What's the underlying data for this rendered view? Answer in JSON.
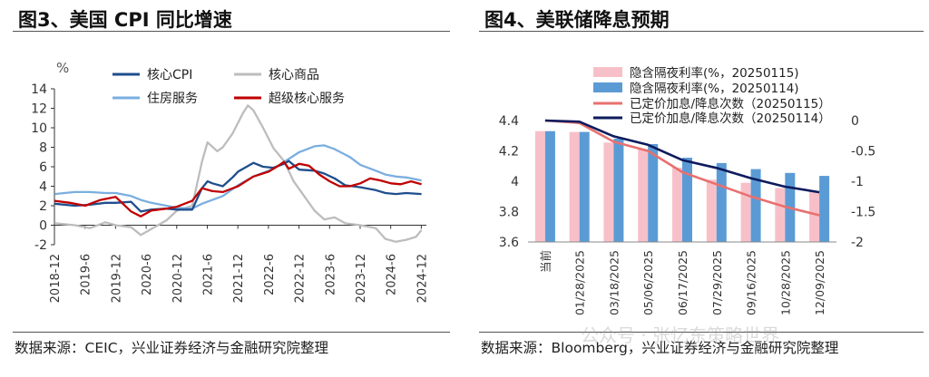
{
  "left": {
    "title": "图3、美国 CPI 同比增速",
    "source_label": "数据来源：",
    "source_text": "CEIC，兴业证券经济与金融研究院整理",
    "chart_data": {
      "type": "line",
      "yunit": "%",
      "ylim": [
        -2,
        14
      ],
      "yticks": [
        -2,
        0,
        2,
        4,
        6,
        8,
        10,
        12,
        14
      ],
      "xlim": [
        2018.917,
        2025.0
      ],
      "xticks": [
        "2018-12",
        "2019-6",
        "2019-12",
        "2020-6",
        "2020-12",
        "2021-6",
        "2021-12",
        "2022-6",
        "2022-12",
        "2023-6",
        "2023-12",
        "2024-6",
        "2024-12"
      ],
      "legend_position": "top",
      "series": [
        {
          "name": "核心CPI",
          "color": "#1f4e8c",
          "points": [
            [
              2018.92,
              2.2
            ],
            [
              2019.25,
              2.0
            ],
            [
              2019.5,
              2.1
            ],
            [
              2019.75,
              2.3
            ],
            [
              2019.92,
              2.3
            ],
            [
              2020.17,
              2.4
            ],
            [
              2020.33,
              1.4
            ],
            [
              2020.5,
              1.6
            ],
            [
              2020.75,
              1.7
            ],
            [
              2020.92,
              1.6
            ],
            [
              2021.17,
              1.6
            ],
            [
              2021.33,
              3.8
            ],
            [
              2021.42,
              4.5
            ],
            [
              2021.5,
              4.3
            ],
            [
              2021.67,
              4.0
            ],
            [
              2021.83,
              4.9
            ],
            [
              2021.92,
              5.5
            ],
            [
              2022.17,
              6.4
            ],
            [
              2022.33,
              6.0
            ],
            [
              2022.5,
              5.9
            ],
            [
              2022.67,
              6.3
            ],
            [
              2022.75,
              6.6
            ],
            [
              2022.92,
              5.7
            ],
            [
              2023.17,
              5.6
            ],
            [
              2023.33,
              5.3
            ],
            [
              2023.5,
              4.8
            ],
            [
              2023.67,
              4.1
            ],
            [
              2023.92,
              3.9
            ],
            [
              2024.17,
              3.6
            ],
            [
              2024.33,
              3.3
            ],
            [
              2024.5,
              3.2
            ],
            [
              2024.67,
              3.3
            ],
            [
              2024.92,
              3.2
            ]
          ]
        },
        {
          "name": "核心商品",
          "color": "#bdbdbd",
          "points": [
            [
              2018.92,
              0.2
            ],
            [
              2019.25,
              0.0
            ],
            [
              2019.5,
              -0.3
            ],
            [
              2019.75,
              0.3
            ],
            [
              2019.92,
              0.0
            ],
            [
              2020.17,
              -0.2
            ],
            [
              2020.33,
              -1.0
            ],
            [
              2020.5,
              -0.4
            ],
            [
              2020.75,
              0.5
            ],
            [
              2020.92,
              1.5
            ],
            [
              2021.17,
              2.0
            ],
            [
              2021.33,
              6.5
            ],
            [
              2021.42,
              8.5
            ],
            [
              2021.58,
              7.6
            ],
            [
              2021.67,
              8.0
            ],
            [
              2021.83,
              9.4
            ],
            [
              2022.0,
              11.5
            ],
            [
              2022.08,
              12.3
            ],
            [
              2022.17,
              11.8
            ],
            [
              2022.33,
              10.0
            ],
            [
              2022.5,
              7.9
            ],
            [
              2022.67,
              6.6
            ],
            [
              2022.83,
              4.5
            ],
            [
              2022.92,
              3.7
            ],
            [
              2023.17,
              1.5
            ],
            [
              2023.33,
              0.6
            ],
            [
              2023.5,
              0.8
            ],
            [
              2023.67,
              0.2
            ],
            [
              2023.92,
              0.0
            ],
            [
              2024.17,
              -0.3
            ],
            [
              2024.33,
              -1.4
            ],
            [
              2024.5,
              -1.7
            ],
            [
              2024.67,
              -1.5
            ],
            [
              2024.83,
              -1.2
            ],
            [
              2024.92,
              -0.5
            ]
          ]
        },
        {
          "name": "住房服务",
          "color": "#7aaee0",
          "points": [
            [
              2018.92,
              3.2
            ],
            [
              2019.25,
              3.4
            ],
            [
              2019.5,
              3.4
            ],
            [
              2019.75,
              3.3
            ],
            [
              2019.92,
              3.3
            ],
            [
              2020.17,
              3.0
            ],
            [
              2020.33,
              2.6
            ],
            [
              2020.5,
              2.3
            ],
            [
              2020.75,
              2.0
            ],
            [
              2020.92,
              1.8
            ],
            [
              2021.17,
              1.7
            ],
            [
              2021.33,
              2.2
            ],
            [
              2021.5,
              2.6
            ],
            [
              2021.67,
              3.0
            ],
            [
              2021.92,
              4.1
            ],
            [
              2022.17,
              5.0
            ],
            [
              2022.5,
              5.8
            ],
            [
              2022.75,
              6.8
            ],
            [
              2022.92,
              7.5
            ],
            [
              2023.17,
              8.1
            ],
            [
              2023.33,
              8.2
            ],
            [
              2023.5,
              7.8
            ],
            [
              2023.75,
              7.0
            ],
            [
              2023.92,
              6.2
            ],
            [
              2024.17,
              5.6
            ],
            [
              2024.33,
              5.2
            ],
            [
              2024.5,
              5.0
            ],
            [
              2024.67,
              4.9
            ],
            [
              2024.92,
              4.6
            ]
          ]
        },
        {
          "name": "超级核心服务",
          "color": "#c00000",
          "points": [
            [
              2018.92,
              2.5
            ],
            [
              2019.17,
              2.3
            ],
            [
              2019.42,
              2.0
            ],
            [
              2019.67,
              2.6
            ],
            [
              2019.92,
              2.9
            ],
            [
              2020.17,
              1.4
            ],
            [
              2020.33,
              0.9
            ],
            [
              2020.5,
              1.5
            ],
            [
              2020.75,
              1.7
            ],
            [
              2020.92,
              1.9
            ],
            [
              2021.17,
              2.5
            ],
            [
              2021.33,
              3.8
            ],
            [
              2021.5,
              3.5
            ],
            [
              2021.67,
              3.4
            ],
            [
              2021.92,
              4.0
            ],
            [
              2022.17,
              5.0
            ],
            [
              2022.42,
              5.5
            ],
            [
              2022.58,
              6.1
            ],
            [
              2022.67,
              6.5
            ],
            [
              2022.75,
              5.8
            ],
            [
              2022.92,
              6.3
            ],
            [
              2023.08,
              6.1
            ],
            [
              2023.25,
              5.2
            ],
            [
              2023.42,
              4.5
            ],
            [
              2023.58,
              4.0
            ],
            [
              2023.75,
              4.0
            ],
            [
              2023.92,
              4.3
            ],
            [
              2024.08,
              4.8
            ],
            [
              2024.25,
              4.6
            ],
            [
              2024.42,
              4.3
            ],
            [
              2024.58,
              4.2
            ],
            [
              2024.75,
              4.5
            ],
            [
              2024.92,
              4.2
            ]
          ]
        }
      ]
    }
  },
  "right": {
    "title": "图4、美联储降息预期",
    "source_label": "数据来源：",
    "source_text": "Bloomberg，兴业证券经济与金融研究院整理",
    "watermark": "公众号 · 张忆东策略世界",
    "chart_data": {
      "type": "bar",
      "categories": [
        "当前",
        "01/28/2025",
        "03/18/2025",
        "05/06/2025",
        "06/17/2025",
        "07/29/2025",
        "09/16/2025",
        "10/28/2025",
        "12/09/2025"
      ],
      "ylim_left": [
        3.6,
        4.4
      ],
      "yticks_left": [
        3.6,
        3.8,
        4,
        4.2,
        4.4
      ],
      "ylim_right": [
        -2,
        0
      ],
      "yticks_right": [
        -2,
        -1.5,
        -1,
        -0.5,
        0
      ],
      "legend_position": "top",
      "series": [
        {
          "name": "隐含隔夜利率(%，20250115)",
          "kind": "bar",
          "axis": "left",
          "color": "#f7c0c9",
          "values": [
            4.33,
            4.325,
            4.255,
            4.21,
            4.09,
            4.01,
            3.99,
            3.955,
            3.935
          ]
        },
        {
          "name": "隐含隔夜利率(%，20250114)",
          "kind": "bar",
          "axis": "left",
          "color": "#5b9bd5",
          "values": [
            4.33,
            4.325,
            4.28,
            4.245,
            4.155,
            4.12,
            4.08,
            4.055,
            4.035
          ]
        },
        {
          "name": "已定价加息/降息次数（20250115）",
          "kind": "line",
          "axis": "right",
          "color": "#e8706f",
          "values": [
            0.0,
            -0.04,
            -0.35,
            -0.5,
            -0.85,
            -1.05,
            -1.25,
            -1.42,
            -1.56
          ]
        },
        {
          "name": "已定价加息/降息次数（20250114）",
          "kind": "line",
          "axis": "right",
          "color": "#0d1b5e",
          "values": [
            0.0,
            -0.02,
            -0.26,
            -0.4,
            -0.65,
            -0.78,
            -0.95,
            -1.09,
            -1.18
          ]
        }
      ]
    }
  }
}
